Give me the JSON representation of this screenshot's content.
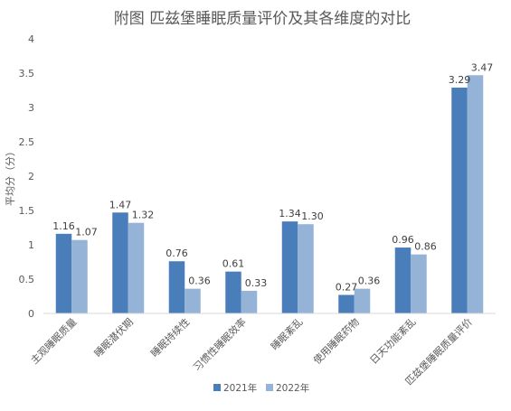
{
  "chart_data": {
    "type": "bar",
    "title": "附图 匹兹堡睡眠质量评价及其各维度的对比",
    "ylabel": "平均分（分）",
    "xlabel": "",
    "ylim": [
      0,
      4
    ],
    "yticks": [
      "0",
      "0.5",
      "1",
      "1.5",
      "2",
      "2.5",
      "3",
      "3.5",
      "4"
    ],
    "grid": false,
    "legend_position": "bottom",
    "categories": [
      "主观睡眠质量",
      "睡眠潜伏期",
      "睡眠持续性",
      "习惯性睡眠效率",
      "睡眠紊乱",
      "使用睡眠药物",
      "日天功能紊乱",
      "匹兹堡睡眠质量评价"
    ],
    "series": [
      {
        "name": "2021年",
        "color": "#4A7EBB",
        "values": [
          1.16,
          1.47,
          0.76,
          0.61,
          1.34,
          0.27,
          0.96,
          3.29
        ],
        "labels": [
          "1.16",
          "1.47",
          "0.76",
          "0.61",
          "1.34",
          "0.27",
          "0.96",
          "3.29"
        ]
      },
      {
        "name": "2022年",
        "color": "#95B3D7",
        "values": [
          1.07,
          1.32,
          0.36,
          0.33,
          1.3,
          0.36,
          0.86,
          3.47
        ],
        "labels": [
          "1.07",
          "1.32",
          "0.36",
          "0.33",
          "1.30",
          "0.36",
          "0.86",
          "3.47"
        ]
      }
    ]
  }
}
